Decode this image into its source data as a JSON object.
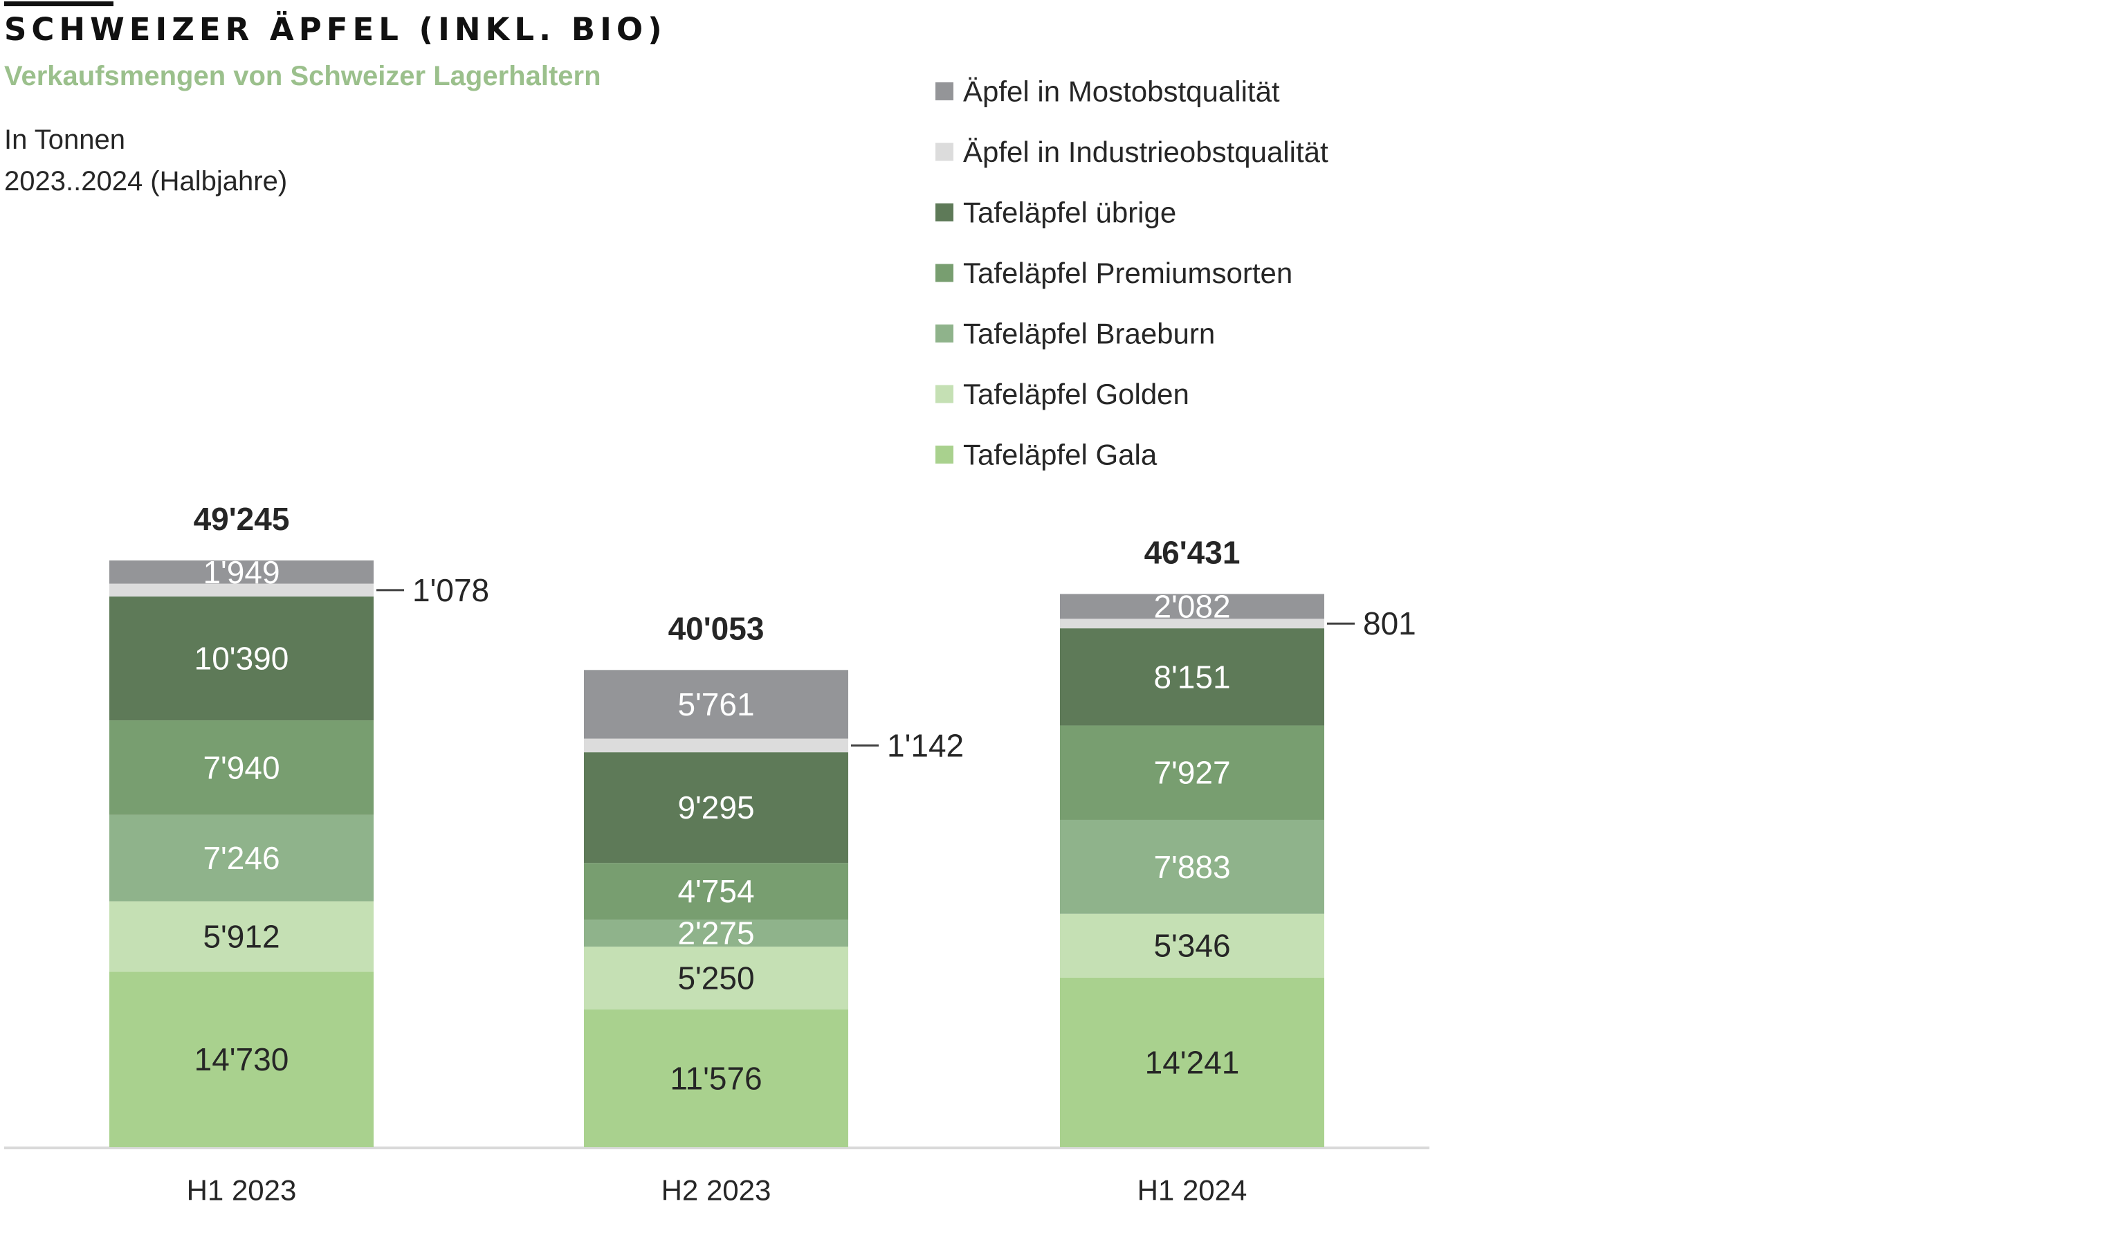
{
  "header": {
    "title": "SCHWEIZER ÄPFEL (INKL. BIO)",
    "subtitle": "Verkaufsmengen von Schweizer Lagerhaltern",
    "unit": "In Tonnen",
    "period": "2023..2024 (Halbjahre)"
  },
  "chart_data": {
    "type": "bar",
    "stacked": true,
    "categories": [
      "H1 2023",
      "H2 2023",
      "H1 2024"
    ],
    "totals": [
      49245,
      40053,
      46431
    ],
    "total_labels": [
      "49'245",
      "40'053",
      "46'431"
    ],
    "series": [
      {
        "name": "Tafeläpfel Gala",
        "color": "#a9d18e",
        "values": [
          14730,
          11576,
          14241
        ],
        "labels": [
          "14'730",
          "11'576",
          "14'241"
        ],
        "label_color": "#262626"
      },
      {
        "name": "Tafeläpfel Golden",
        "color": "#c5e0b4",
        "values": [
          5912,
          5250,
          5346
        ],
        "labels": [
          "5'912",
          "5'250",
          "5'346"
        ],
        "label_color": "#262626"
      },
      {
        "name": "Tafeläpfel Braeburn",
        "color": "#8fb38b",
        "values": [
          7246,
          2275,
          7883
        ],
        "labels": [
          "7'246",
          "2'275",
          "7'883"
        ],
        "label_color": "#ffffff"
      },
      {
        "name": "Tafeläpfel Premiumsorten",
        "color": "#789e70",
        "values": [
          7940,
          4754,
          7927
        ],
        "labels": [
          "7'940",
          "4'754",
          "7'927"
        ],
        "label_color": "#ffffff"
      },
      {
        "name": "Tafeläpfel übrige",
        "color": "#5e7a58",
        "values": [
          10390,
          9295,
          8151
        ],
        "labels": [
          "10'390",
          "9'295",
          "8'151"
        ],
        "label_color": "#ffffff"
      },
      {
        "name": "Äpfel in Industrieobstqualität",
        "color": "#dcdcdc",
        "values": [
          1078,
          1142,
          801
        ],
        "labels": [
          "1'078",
          "1'142",
          "801"
        ],
        "label_color": "#262626",
        "label_outside": true
      },
      {
        "name": "Äpfel in Mostobstqualität",
        "color": "#949598",
        "values": [
          1949,
          5761,
          2082
        ],
        "labels": [
          "1'949",
          "5'761",
          "2'082"
        ],
        "label_color": "#ffffff"
      }
    ],
    "legend_position": "top-right",
    "legend_order": "reverse",
    "grid": false
  }
}
